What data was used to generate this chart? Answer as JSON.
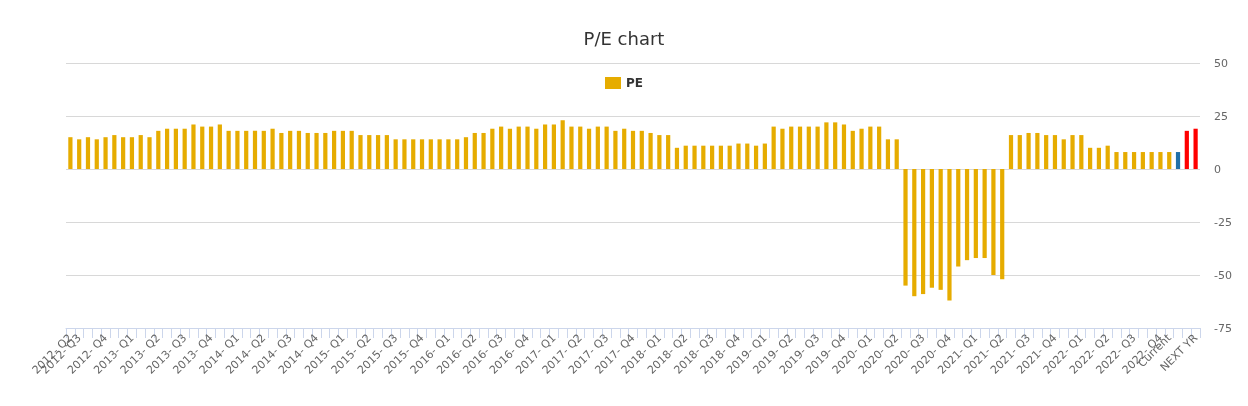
{
  "chart_data": {
    "type": "bar",
    "title": "P/E chart",
    "categories": [
      "2012- Q2",
      "2012- Q3",
      null,
      null,
      "2012- Q4",
      null,
      null,
      "2013- Q1",
      null,
      null,
      "2013- Q2",
      null,
      null,
      "2013- Q3",
      null,
      null,
      "2013- Q4",
      null,
      null,
      "2014- Q1",
      null,
      null,
      "2014- Q2",
      null,
      null,
      "2014- Q3",
      null,
      null,
      "2014- Q4",
      null,
      null,
      "2015- Q1",
      null,
      null,
      "2015- Q2",
      null,
      null,
      "2015- Q3",
      null,
      null,
      "2015- Q4",
      null,
      null,
      "2016- Q1",
      null,
      null,
      "2016- Q2",
      null,
      null,
      "2016- Q3",
      null,
      null,
      "2016- Q4",
      null,
      null,
      "2017- Q1",
      null,
      null,
      "2017- Q2",
      null,
      null,
      "2017- Q3",
      null,
      null,
      "2017- Q4",
      null,
      null,
      "2018- Q1",
      null,
      null,
      "2018- Q2",
      null,
      null,
      "2018- Q3",
      null,
      null,
      "2018- Q4",
      null,
      null,
      "2019- Q1",
      null,
      null,
      "2019- Q2",
      null,
      null,
      "2019- Q3",
      null,
      null,
      "2019- Q4",
      null,
      null,
      "2020- Q1",
      null,
      null,
      "2020- Q2",
      null,
      null,
      "2020- Q3",
      null,
      null,
      "2020- Q4",
      null,
      null,
      "2021- Q1",
      null,
      null,
      "2021- Q2",
      null,
      null,
      "2021- Q3",
      null,
      null,
      "2021- Q4",
      null,
      null,
      "2022- Q1",
      null,
      null,
      "2022- Q2",
      null,
      null,
      "2022- Q3",
      null,
      null,
      "2022- Q4",
      "Current",
      null,
      null,
      "NEXT YR"
    ],
    "series": [
      {
        "name": "PE",
        "color": "#e6ac00",
        "values": [
          15,
          14,
          15,
          14,
          15,
          16,
          15,
          15,
          16,
          15,
          18,
          19,
          19,
          19,
          21,
          20,
          20,
          21,
          18,
          18,
          18,
          18,
          18,
          19,
          17,
          18,
          18,
          17,
          17,
          17,
          18,
          18,
          18,
          16,
          16,
          16,
          16,
          14,
          14,
          14,
          14,
          14,
          14,
          14,
          14,
          15,
          17,
          17,
          19,
          20,
          19,
          20,
          20,
          19,
          21,
          21,
          23,
          20,
          20,
          19,
          20,
          20,
          18,
          19,
          18,
          18,
          17,
          16,
          16,
          10,
          11,
          11,
          11,
          11,
          11,
          11,
          12,
          12,
          11,
          12,
          20,
          19,
          20,
          20,
          20,
          20,
          22,
          22,
          21,
          18,
          19,
          20,
          20,
          14,
          14,
          -55,
          -60,
          -59,
          -56,
          -57,
          -62,
          -46,
          -43,
          -42,
          -42,
          -50,
          -52,
          16,
          16,
          17,
          17,
          16,
          16,
          14,
          16,
          16,
          10,
          10,
          11,
          8,
          8,
          8,
          8,
          8,
          8,
          8,
          8,
          18,
          19
        ],
        "colors": [
          "#e6ac00",
          "#e6ac00",
          "#e6ac00",
          "#e6ac00",
          "#e6ac00",
          "#e6ac00",
          "#e6ac00",
          "#e6ac00",
          "#e6ac00",
          "#e6ac00",
          "#e6ac00",
          "#e6ac00",
          "#e6ac00",
          "#e6ac00",
          "#e6ac00",
          "#e6ac00",
          "#e6ac00",
          "#e6ac00",
          "#e6ac00",
          "#e6ac00",
          "#e6ac00",
          "#e6ac00",
          "#e6ac00",
          "#e6ac00",
          "#e6ac00",
          "#e6ac00",
          "#e6ac00",
          "#e6ac00",
          "#e6ac00",
          "#e6ac00",
          "#e6ac00",
          "#e6ac00",
          "#e6ac00",
          "#e6ac00",
          "#e6ac00",
          "#e6ac00",
          "#e6ac00",
          "#e6ac00",
          "#e6ac00",
          "#e6ac00",
          "#e6ac00",
          "#e6ac00",
          "#e6ac00",
          "#e6ac00",
          "#e6ac00",
          "#e6ac00",
          "#e6ac00",
          "#e6ac00",
          "#e6ac00",
          "#e6ac00",
          "#e6ac00",
          "#e6ac00",
          "#e6ac00",
          "#e6ac00",
          "#e6ac00",
          "#e6ac00",
          "#e6ac00",
          "#e6ac00",
          "#e6ac00",
          "#e6ac00",
          "#e6ac00",
          "#e6ac00",
          "#e6ac00",
          "#e6ac00",
          "#e6ac00",
          "#e6ac00",
          "#e6ac00",
          "#e6ac00",
          "#e6ac00",
          "#e6ac00",
          "#e6ac00",
          "#e6ac00",
          "#e6ac00",
          "#e6ac00",
          "#e6ac00",
          "#e6ac00",
          "#e6ac00",
          "#e6ac00",
          "#e6ac00",
          "#e6ac00",
          "#e6ac00",
          "#e6ac00",
          "#e6ac00",
          "#e6ac00",
          "#e6ac00",
          "#e6ac00",
          "#e6ac00",
          "#e6ac00",
          "#e6ac00",
          "#e6ac00",
          "#e6ac00",
          "#e6ac00",
          "#e6ac00",
          "#e6ac00",
          "#e6ac00",
          "#e6ac00",
          "#e6ac00",
          "#e6ac00",
          "#e6ac00",
          "#e6ac00",
          "#e6ac00",
          "#e6ac00",
          "#e6ac00",
          "#e6ac00",
          "#e6ac00",
          "#e6ac00",
          "#e6ac00",
          "#e6ac00",
          "#e6ac00",
          "#e6ac00",
          "#e6ac00",
          "#e6ac00",
          "#e6ac00",
          "#e6ac00",
          "#e6ac00",
          "#e6ac00",
          "#e6ac00",
          "#e6ac00",
          "#e6ac00",
          "#e6ac00",
          "#e6ac00",
          "#e6ac00",
          "#e6ac00",
          "#e6ac00",
          "#e6ac00",
          "#e6ac00",
          "#1f6fa8",
          "#ff0000",
          "#ff0000"
        ]
      }
    ],
    "ylim": [
      -75,
      50
    ],
    "yticks": [
      -75,
      -50,
      -25,
      0,
      25,
      50
    ],
    "grid": "y",
    "legend": "top"
  }
}
